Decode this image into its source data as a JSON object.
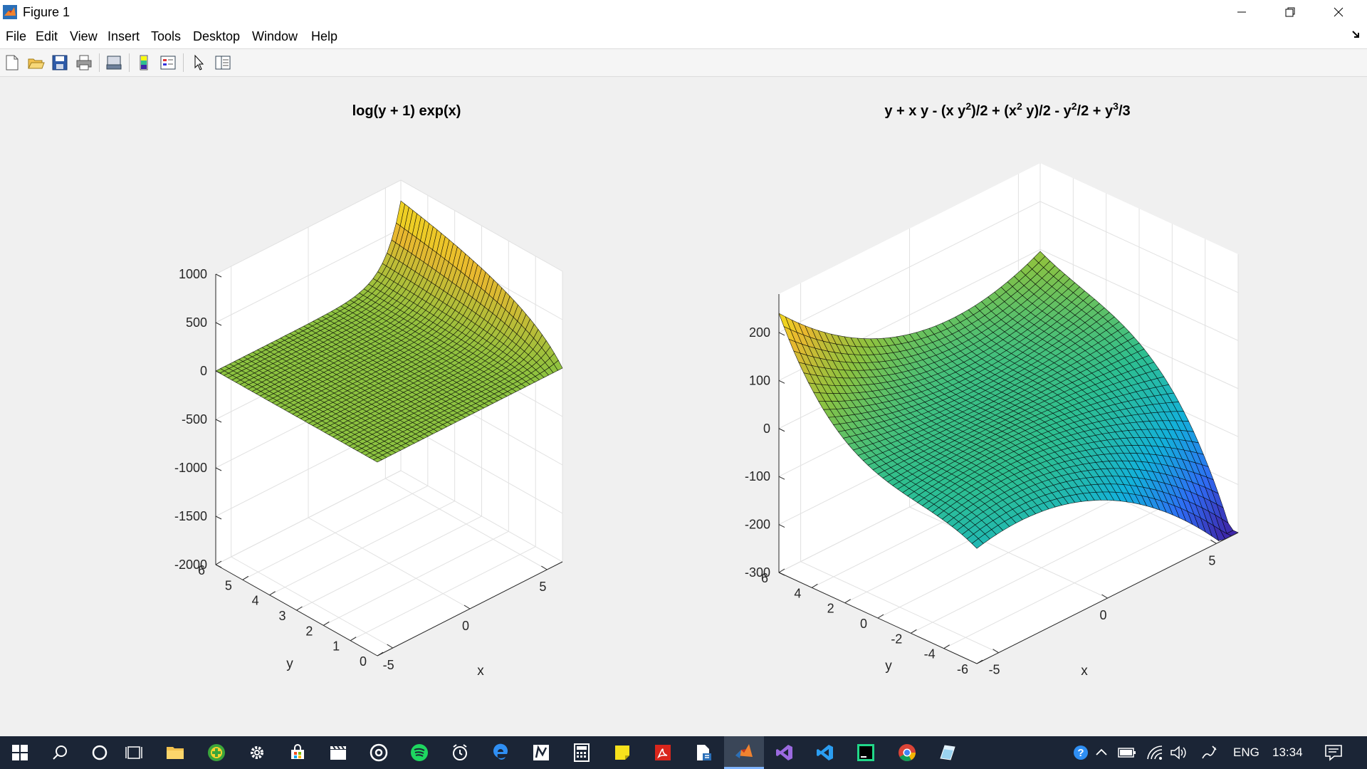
{
  "window": {
    "title": "Figure 1"
  },
  "menu": {
    "items": [
      "File",
      "Edit",
      "View",
      "Insert",
      "Tools",
      "Desktop",
      "Window",
      "Help"
    ]
  },
  "toolbar": {
    "tools": [
      "new-figure-icon",
      "open-file-icon",
      "save-icon",
      "print-icon",
      "print-preview-icon",
      "colorbar-icon",
      "legend-icon",
      "pointer-icon",
      "property-editor-icon"
    ]
  },
  "colormap": [
    "#3e26a8",
    "#2f6cf4",
    "#13b1da",
    "#2ebf8f",
    "#8cc240",
    "#e8b82f",
    "#f9fb0e"
  ],
  "chart_data": [
    {
      "type": "surface",
      "title": "log(y + 1) exp(x)",
      "function": "log(y + 1) * exp(x)",
      "xlabel": "x",
      "ylabel": "y",
      "xlim": [
        -6,
        6
      ],
      "ylim": [
        0,
        6
      ],
      "zlim": [
        -2000,
        1000
      ],
      "xticks": [
        -5,
        0,
        5
      ],
      "yticks": [
        0,
        1,
        2,
        3,
        4,
        5,
        6
      ],
      "zticks": [
        -2000,
        -1500,
        -1000,
        -500,
        0,
        500,
        1000
      ],
      "xtick_labels": [
        "-5",
        "0",
        "5"
      ],
      "ytick_labels": [
        "0",
        "1",
        "2",
        "3",
        "4",
        "5",
        "6"
      ],
      "ztick_labels": [
        "-2000",
        "-1500",
        "-1000",
        "-500",
        "0",
        "500",
        "1000"
      ],
      "grid": true,
      "corners": [
        {
          "x": -6,
          "y": 0,
          "z": 0
        },
        {
          "x": -6,
          "y": 6,
          "z": 0
        },
        {
          "x": 6,
          "y": 0,
          "z": 0
        },
        {
          "x": 6,
          "y": 6,
          "z": 787
        },
        {
          "x": 6,
          "y": 1.5,
          "z": -1980
        }
      ]
    },
    {
      "type": "surface",
      "title": "y + x y - (x y^2)/2 + (x^2 y)/2 - y^2/2 + y^3/3",
      "function": "y + x*y - (x*y^2)/2 + (x^2*y)/2 - y^2/2 + y^3/3",
      "xlabel": "x",
      "ylabel": "y",
      "xlim": [
        -6,
        6
      ],
      "ylim": [
        -6,
        6
      ],
      "zlim": [
        -300,
        280
      ],
      "xticks": [
        -5,
        0,
        5
      ],
      "yticks": [
        -6,
        -4,
        -2,
        0,
        2,
        4,
        6
      ],
      "zticks": [
        -300,
        -200,
        -100,
        0,
        100,
        200
      ],
      "xtick_labels": [
        "-5",
        "0",
        "5"
      ],
      "ytick_labels": [
        "-6",
        "-4",
        "-2",
        "0",
        "2",
        "4",
        "6"
      ],
      "ztick_labels": [
        "-300",
        "-200",
        "-100",
        "0",
        "100",
        "200"
      ],
      "grid": true,
      "corners": [
        {
          "x": -6,
          "y": -6,
          "z": -246
        },
        {
          "x": -6,
          "y": 6,
          "z": 270
        },
        {
          "x": 6,
          "y": -6,
          "z": -330
        },
        {
          "x": 6,
          "y": 6,
          "z": 150
        }
      ]
    }
  ],
  "taskbar": {
    "apps": [
      "windows-start-icon",
      "search-icon",
      "cortana-icon",
      "task-view-icon",
      "file-explorer-icon",
      "plus-app-icon",
      "settings-icon",
      "store-icon",
      "video-editor-icon",
      "media-icon",
      "spotify-icon",
      "alarm-clock-icon",
      "edge-icon",
      "pen-app-icon",
      "calculator-icon",
      "sticky-notes-icon",
      "acrobat-icon",
      "document-tool-icon",
      "matlab-icon",
      "visual-studio-icon",
      "vscode-icon",
      "pycharm-icon",
      "chrome-icon",
      "paint-icon"
    ],
    "active_app": "matlab-icon",
    "tray": {
      "language": "ENG",
      "time": "13:34"
    }
  }
}
